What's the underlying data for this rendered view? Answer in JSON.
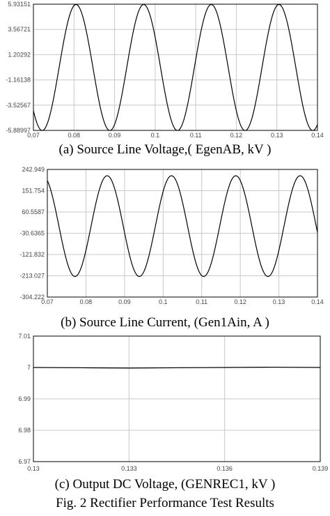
{
  "figure_caption": "Fig.  2  Rectifier Performance Test Results",
  "chart_data": [
    {
      "type": "line",
      "title": "(a)  Source Line Voltage,( EgenAB,  kV )",
      "xlabel": "",
      "ylabel": "",
      "xlim": [
        0.07,
        0.14
      ],
      "ylim": [
        -5.88997,
        5.93151
      ],
      "x_ticks": [
        "0.07",
        "0.08",
        "0.09",
        "0.1",
        "0.11",
        "0.12",
        "0.13",
        "0.14"
      ],
      "y_ticks": [
        "5.93151",
        "3.56721",
        "1.20292",
        "-1.16138",
        "-3.52567",
        "-5.88997"
      ],
      "grid": true,
      "series": [
        {
          "amplitude": 5.9,
          "frequency_hz": 60,
          "peak_time_s": 0.0805,
          "color": "#000000"
        }
      ]
    },
    {
      "type": "line",
      "title": "(b) Source Line Current, (Gen1Ain,  A )",
      "xlabel": "",
      "ylabel": "",
      "xlim": [
        0.07,
        0.14
      ],
      "ylim": [
        -304.222,
        242.949
      ],
      "x_ticks": [
        "0.07",
        "0.08",
        "0.09",
        "0.1",
        "0.11",
        "0.12",
        "0.13",
        "0.14"
      ],
      "y_ticks": [
        "242.949",
        "151.754",
        "60.5587",
        "-30.6365",
        "-121.832",
        "-213.027",
        "-304.222"
      ],
      "grid": true,
      "series": [
        {
          "amplitude": 216,
          "frequency_hz": 60,
          "peak_time_s": 0.0855,
          "color": "#000000"
        }
      ]
    },
    {
      "type": "line",
      "title": "(c) Output DC Voltage, (GENREC1,  kV )",
      "xlabel": "",
      "ylabel": "",
      "xlim": [
        0.13,
        0.139
      ],
      "ylim": [
        6.97,
        7.01
      ],
      "x_ticks": [
        "0.13",
        "0.133",
        "0.136",
        "0.139"
      ],
      "y_ticks": [
        "7.01",
        "7",
        "6.99",
        "6.98",
        "6.97"
      ],
      "grid": true,
      "series": [
        {
          "x": [
            0.13,
            0.1315,
            0.133,
            0.1345,
            0.136,
            0.1375,
            0.139
          ],
          "y": [
            7.0,
            6.9999,
            6.9998,
            6.9999,
            7.0,
            7.0001,
            7.0
          ],
          "color": "#000000"
        }
      ]
    }
  ]
}
